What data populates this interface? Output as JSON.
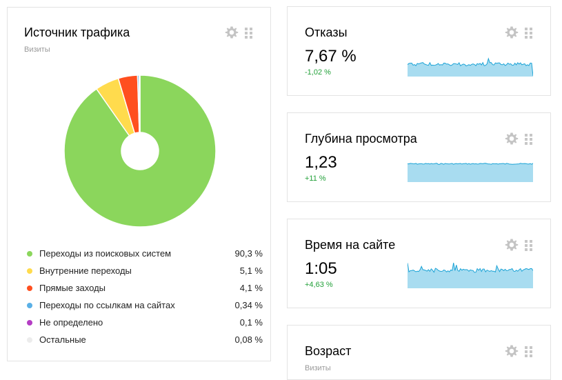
{
  "traffic_widget": {
    "title": "Источник трафика",
    "subtitle": "Визиты",
    "legend": [
      {
        "label": "Переходы из поисковых систем",
        "value": "90,3 %",
        "color": "#8bd65c"
      },
      {
        "label": "Внутренние переходы",
        "value": "5,1 %",
        "color": "#ffdb4d"
      },
      {
        "label": "Прямые заходы",
        "value": "4,1 %",
        "color": "#ff4f1f"
      },
      {
        "label": "Переходы по ссылкам на сайтах",
        "value": "0,34 %",
        "color": "#5ab0e6"
      },
      {
        "label": "Не определено",
        "value": "0,1 %",
        "color": "#b43dc4"
      },
      {
        "label": "Остальные",
        "value": "0,08 %",
        "color": "#ececec"
      }
    ],
    "slices": [
      90.3,
      5.1,
      4.1,
      0.34,
      0.1,
      0.08
    ]
  },
  "bounce_widget": {
    "title": "Отказы",
    "value": "7,67 %",
    "delta": "-1,02 %"
  },
  "depth_widget": {
    "title": "Глубина просмотра",
    "value": "1,23",
    "delta": "+11 %"
  },
  "time_widget": {
    "title": "Время на сайте",
    "value": "1:05",
    "delta": "+4,63 %"
  },
  "age_widget": {
    "title": "Возраст",
    "subtitle": "Визиты"
  },
  "icons": {
    "settings": "gear-icon",
    "drag": "drag-handle-icon"
  },
  "colors": {
    "spark_fill": "#a8dcf0",
    "spark_line": "#1ba3d6",
    "positive_delta": "#21a038"
  }
}
